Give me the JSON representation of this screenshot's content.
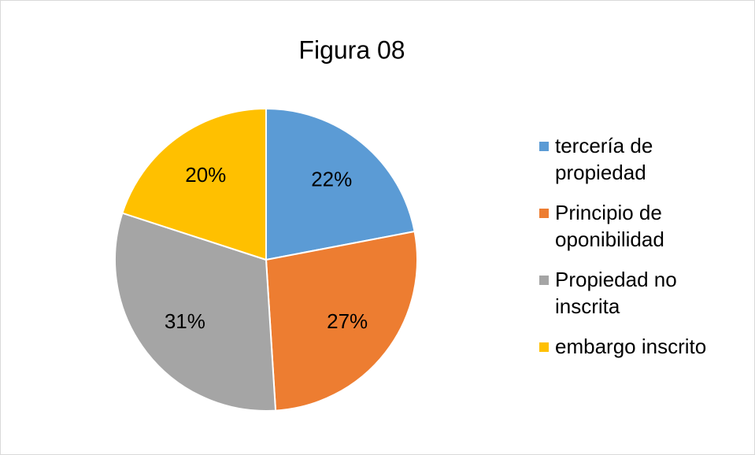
{
  "chart_data": {
    "type": "pie",
    "title": "Figura 08",
    "categories": [
      "tercería de propiedad",
      "Principio de oponibilidad",
      "Propiedad no inscrita",
      "embargo inscrito"
    ],
    "values": [
      22,
      27,
      31,
      20
    ],
    "value_labels": [
      "22%",
      "27%",
      "31%",
      "20%"
    ],
    "colors": [
      "#5b9bd5",
      "#ed7d31",
      "#a5a5a5",
      "#ffc000"
    ],
    "legend": "right"
  }
}
